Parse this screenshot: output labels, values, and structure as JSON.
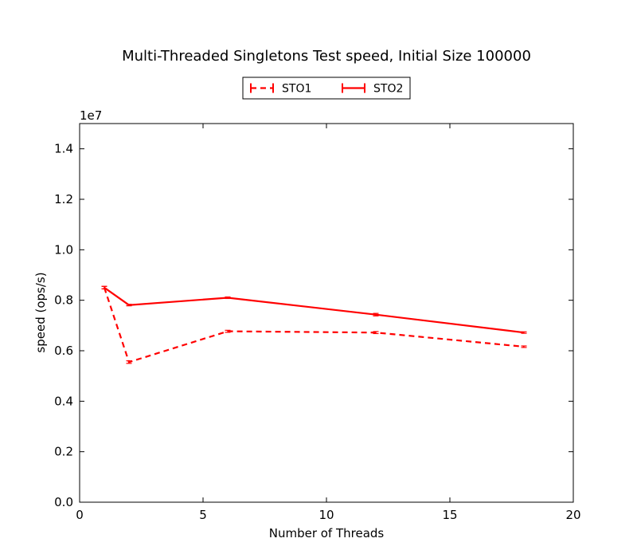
{
  "chart_data": {
    "type": "line",
    "title": "Multi-Threaded Singletons Test speed, Initial Size 100000",
    "xlabel": "Number of Threads",
    "ylabel": "speed (ops/s)",
    "y_multiplier_label": "1e7",
    "xlim": [
      0,
      20
    ],
    "ylim": [
      0,
      1.5
    ],
    "x_ticks": [
      0,
      5,
      10,
      15,
      20
    ],
    "x_tick_labels": [
      "0",
      "5",
      "10",
      "15",
      "20"
    ],
    "y_ticks": [
      0,
      0.2,
      0.4,
      0.6,
      0.8,
      1.0,
      1.2,
      1.4
    ],
    "y_tick_labels": [
      "0.0",
      "0.2",
      "0.4",
      "0.6",
      "0.8",
      "1.0",
      "1.2",
      "1.4"
    ],
    "grid": false,
    "legend_position": "top-center",
    "series": [
      {
        "name": "STO1",
        "style": "dashed",
        "color": "#ff0000",
        "x": [
          1,
          2,
          6,
          12,
          18
        ],
        "y": [
          0.85,
          0.555,
          0.677,
          0.672,
          0.616
        ],
        "err": [
          0.005,
          0.005,
          0.004,
          0.004,
          0.003
        ]
      },
      {
        "name": "STO2",
        "style": "solid",
        "color": "#ff0000",
        "x": [
          1,
          2,
          6,
          12,
          18
        ],
        "y": [
          0.85,
          0.781,
          0.81,
          0.743,
          0.672
        ],
        "err": [
          0.005,
          0.003,
          0.003,
          0.005,
          0.003
        ]
      }
    ]
  }
}
